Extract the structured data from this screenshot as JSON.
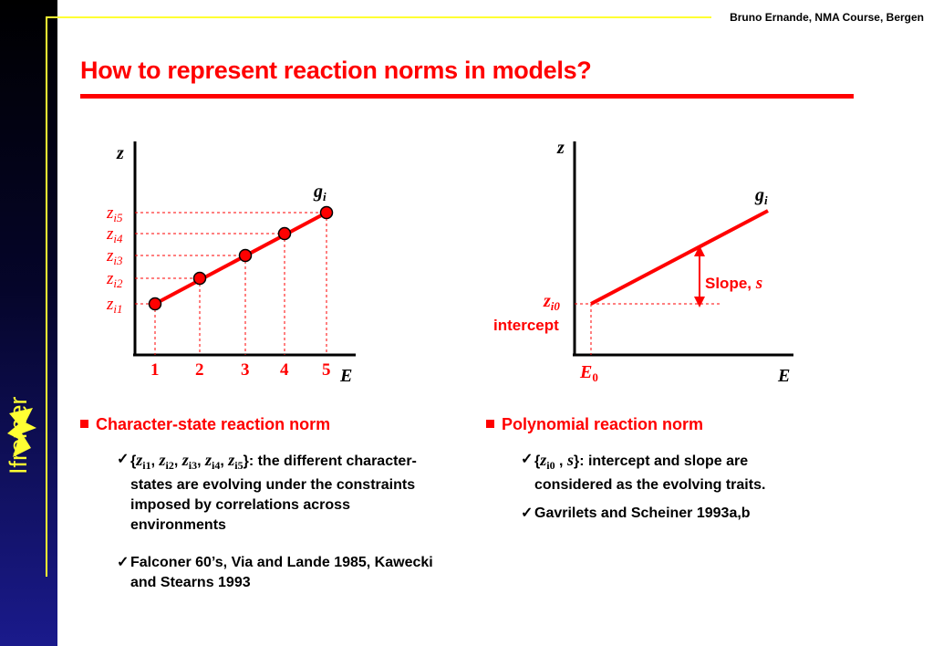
{
  "header": {
    "credit": "Bruno Ernande, NMA Course, Bergen"
  },
  "title": "How to represent reaction norms in models?",
  "logo": {
    "text": "Ifremer"
  },
  "colors": {
    "accent": "#ff0000",
    "sidebar": "#1a1a8c",
    "logo": "#ffff33"
  },
  "left_plot": {
    "y_axis_label": "z",
    "x_axis_label": "E",
    "line_label": "g",
    "line_label_sub": "i",
    "y_ticks": [
      {
        "main": "z",
        "sub": "i1"
      },
      {
        "main": "z",
        "sub": "i2"
      },
      {
        "main": "z",
        "sub": "i3"
      },
      {
        "main": "z",
        "sub": "i4"
      },
      {
        "main": "z",
        "sub": "i5"
      }
    ],
    "x_ticks": [
      "1",
      "2",
      "3",
      "4",
      "5"
    ]
  },
  "right_plot": {
    "y_axis_label": "z",
    "x_axis_label": "E",
    "line_label": "g",
    "line_label_sub": "i",
    "intercept_label_main": "z",
    "intercept_label_sub": "i0",
    "intercept_text": "intercept",
    "x0_label_main": "E",
    "x0_label_sub": "0",
    "slope_text": "Slope, ",
    "slope_symbol": "s"
  },
  "chart_data": [
    {
      "type": "scatter",
      "x": [
        1,
        2,
        3,
        4,
        5
      ],
      "y": [
        1,
        2,
        3,
        4,
        5
      ],
      "xlabel": "E",
      "ylabel": "z",
      "xticks": [
        "1",
        "2",
        "3",
        "4",
        "5"
      ],
      "yticks": [
        "zi1",
        "zi2",
        "zi3",
        "zi4",
        "zi5"
      ],
      "series": [
        {
          "name": "gi",
          "values": [
            1,
            2,
            3,
            4,
            5
          ]
        }
      ]
    },
    {
      "type": "line",
      "x": [
        "E0",
        "E"
      ],
      "xlabel": "E",
      "ylabel": "z",
      "series": [
        {
          "name": "gi"
        }
      ],
      "annotations": [
        "zi0",
        "intercept",
        "Slope, s",
        "E0"
      ]
    }
  ],
  "sections": {
    "left": {
      "heading": "Character-state reaction norm",
      "bullets": [
        {
          "set": [
            {
              "main": "z",
              "sub": "i1"
            },
            {
              "main": "z",
              "sub": "i2"
            },
            {
              "main": "z",
              "sub": "i3"
            },
            {
              "main": "z",
              "sub": "i4"
            },
            {
              "main": "z",
              "sub": "i5"
            }
          ],
          "text": ": the different character-states are evolving under the constraints imposed by correlations across environments"
        },
        {
          "text": "Falconer 60’s, Via and Lande 1985, Kawecki and Stearns 1993"
        }
      ]
    },
    "right": {
      "heading": "Polynomial reaction norm",
      "bullets": [
        {
          "set_intercept": {
            "main": "z",
            "sub": "i0"
          },
          "set_slope": "s",
          "text": ": intercept and slope are considered as the evolving traits."
        },
        {
          "text": "Gavrilets and Scheiner 1993a,b"
        }
      ]
    }
  }
}
